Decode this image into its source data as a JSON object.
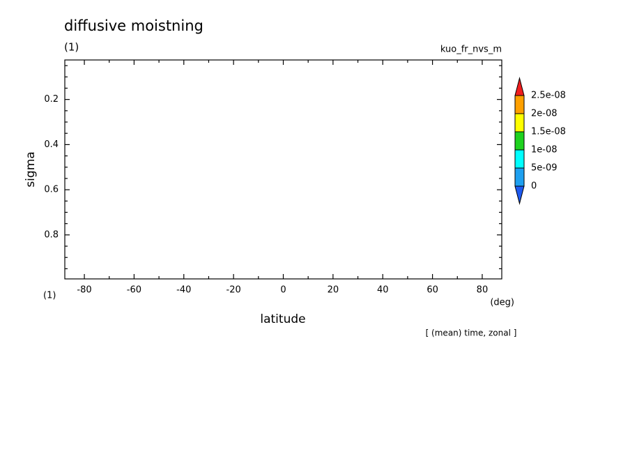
{
  "chart_data": {
    "type": "contour",
    "title": "diffusive moistning",
    "subtitle": "(1)",
    "annotation": "kuo_fr_nvs_m",
    "y_unit": "(1)",
    "x_unit": "(deg)",
    "xlabel": "latitude",
    "ylabel": "sigma",
    "footnote": "[ (mean) time, zonal ]",
    "xlim": [
      -87.86,
      87.86
    ],
    "xticks": [
      -80,
      -60,
      -40,
      -20,
      0,
      20,
      40,
      60,
      80
    ],
    "xminorticks": [
      -70,
      -50,
      -30,
      -10,
      10,
      30,
      50,
      70
    ],
    "ylim": [
      0.025,
      0.995
    ],
    "y_inverted": true,
    "yticks": [
      0.2,
      0.4,
      0.6,
      0.8
    ],
    "yminorticks": [
      0.05,
      0.1,
      0.15,
      0.25,
      0.3,
      0.35,
      0.45,
      0.5,
      0.55,
      0.65,
      0.7,
      0.75,
      0.85,
      0.9,
      0.95
    ],
    "colorbar": {
      "levels": [
        0,
        {
          "value": 5e-09,
          "label": "5e-09"
        },
        {
          "value": 1e-08,
          "label": "1e-08"
        },
        {
          "value": 1.5e-08,
          "label": "1.5e-08"
        },
        {
          "value": 2e-08,
          "label": "2e-08"
        },
        {
          "value": 2.5e-08,
          "label": "2.5e-08"
        }
      ],
      "colors": [
        "#1e5af0",
        "#1ea0f0",
        "#00ffff",
        "#1ed21e",
        "#ffff00",
        "#ffa000",
        "#f01e1e"
      ]
    }
  }
}
